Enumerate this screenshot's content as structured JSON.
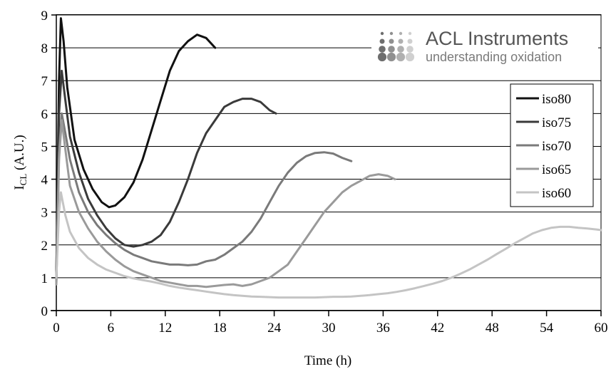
{
  "chart_data": {
    "type": "line",
    "title": "",
    "xlabel": "Time (h)",
    "ylabel": "I",
    "ylabel_sub": "CL",
    "ylabel_suffix": " (A.U.)",
    "xlim": [
      0,
      60
    ],
    "ylim": [
      0,
      9
    ],
    "xticks": [
      "0",
      "6",
      "12",
      "18",
      "24",
      "30",
      "36",
      "42",
      "48",
      "54",
      "60"
    ],
    "yticks": [
      "0",
      "1",
      "2",
      "3",
      "4",
      "5",
      "6",
      "7",
      "8",
      "9"
    ],
    "grid": "horizontal",
    "legend_position": "right",
    "series": [
      {
        "name": "iso80",
        "color": "#111111",
        "points": [
          [
            0,
            0.9
          ],
          [
            0.3,
            7.0
          ],
          [
            0.5,
            8.9
          ],
          [
            0.8,
            8.2
          ],
          [
            1.2,
            6.8
          ],
          [
            2,
            5.2
          ],
          [
            3,
            4.3
          ],
          [
            4,
            3.7
          ],
          [
            5,
            3.3
          ],
          [
            5.8,
            3.15
          ],
          [
            6.5,
            3.2
          ],
          [
            7.5,
            3.45
          ],
          [
            8.5,
            3.9
          ],
          [
            9.5,
            4.6
          ],
          [
            10.5,
            5.5
          ],
          [
            11.5,
            6.4
          ],
          [
            12.5,
            7.3
          ],
          [
            13.5,
            7.9
          ],
          [
            14.5,
            8.2
          ],
          [
            15.5,
            8.4
          ],
          [
            16.5,
            8.3
          ],
          [
            17.5,
            8.0
          ]
        ]
      },
      {
        "name": "iso75",
        "color": "#3a3a3a",
        "points": [
          [
            0,
            1.2
          ],
          [
            0.3,
            6.0
          ],
          [
            0.6,
            7.3
          ],
          [
            1,
            6.4
          ],
          [
            1.5,
            5.3
          ],
          [
            2.5,
            4.2
          ],
          [
            3.5,
            3.4
          ],
          [
            4.5,
            2.9
          ],
          [
            5.5,
            2.5
          ],
          [
            6.5,
            2.2
          ],
          [
            7.5,
            2.0
          ],
          [
            8.5,
            1.95
          ],
          [
            9.5,
            2.0
          ],
          [
            10.5,
            2.1
          ],
          [
            11.5,
            2.3
          ],
          [
            12.5,
            2.7
          ],
          [
            13.5,
            3.3
          ],
          [
            14.5,
            4.0
          ],
          [
            15.5,
            4.8
          ],
          [
            16.5,
            5.4
          ],
          [
            17.5,
            5.8
          ],
          [
            18.5,
            6.2
          ],
          [
            19.5,
            6.35
          ],
          [
            20.5,
            6.45
          ],
          [
            21.5,
            6.45
          ],
          [
            22.5,
            6.35
          ],
          [
            23.5,
            6.1
          ],
          [
            24.2,
            6.0
          ]
        ]
      },
      {
        "name": "iso70",
        "color": "#7a7a7a",
        "points": [
          [
            0,
            0.8
          ],
          [
            0.3,
            4.8
          ],
          [
            0.6,
            6.0
          ],
          [
            1,
            5.4
          ],
          [
            1.5,
            4.6
          ],
          [
            2.5,
            3.6
          ],
          [
            3.5,
            3.0
          ],
          [
            4.5,
            2.6
          ],
          [
            5.5,
            2.3
          ],
          [
            6.5,
            2.05
          ],
          [
            7.5,
            1.85
          ],
          [
            8.5,
            1.7
          ],
          [
            9.5,
            1.6
          ],
          [
            10.5,
            1.5
          ],
          [
            11.5,
            1.45
          ],
          [
            12.5,
            1.4
          ],
          [
            13.5,
            1.4
          ],
          [
            14.5,
            1.38
          ],
          [
            15.5,
            1.4
          ],
          [
            16.5,
            1.5
          ],
          [
            17.5,
            1.55
          ],
          [
            18.5,
            1.7
          ],
          [
            19.5,
            1.9
          ],
          [
            20.5,
            2.1
          ],
          [
            21.5,
            2.4
          ],
          [
            22.5,
            2.8
          ],
          [
            23.5,
            3.3
          ],
          [
            24.5,
            3.8
          ],
          [
            25.5,
            4.2
          ],
          [
            26.5,
            4.5
          ],
          [
            27.5,
            4.7
          ],
          [
            28.5,
            4.8
          ],
          [
            29.5,
            4.82
          ],
          [
            30.5,
            4.78
          ],
          [
            31.5,
            4.65
          ],
          [
            32.5,
            4.55
          ]
        ]
      },
      {
        "name": "iso65",
        "color": "#9a9a9a",
        "points": [
          [
            0,
            0.8
          ],
          [
            0.3,
            4.6
          ],
          [
            0.6,
            5.8
          ],
          [
            1,
            4.9
          ],
          [
            1.5,
            3.8
          ],
          [
            2.5,
            3.0
          ],
          [
            3.5,
            2.5
          ],
          [
            4.5,
            2.1
          ],
          [
            5.5,
            1.8
          ],
          [
            6.5,
            1.55
          ],
          [
            7.5,
            1.35
          ],
          [
            8.5,
            1.2
          ],
          [
            9.5,
            1.1
          ],
          [
            10.5,
            1.0
          ],
          [
            11.5,
            0.9
          ],
          [
            12.5,
            0.85
          ],
          [
            13.5,
            0.8
          ],
          [
            14.5,
            0.75
          ],
          [
            15.5,
            0.75
          ],
          [
            16.5,
            0.72
          ],
          [
            17.5,
            0.75
          ],
          [
            18.5,
            0.78
          ],
          [
            19.5,
            0.8
          ],
          [
            20.5,
            0.75
          ],
          [
            21.5,
            0.8
          ],
          [
            22.5,
            0.9
          ],
          [
            23.5,
            1.0
          ],
          [
            24.5,
            1.2
          ],
          [
            25.5,
            1.4
          ],
          [
            26.5,
            1.8
          ],
          [
            27.5,
            2.2
          ],
          [
            28.5,
            2.6
          ],
          [
            29.5,
            3.0
          ],
          [
            30.5,
            3.3
          ],
          [
            31.5,
            3.6
          ],
          [
            32.5,
            3.8
          ],
          [
            33.5,
            3.95
          ],
          [
            34.5,
            4.1
          ],
          [
            35.5,
            4.15
          ],
          [
            36.5,
            4.1
          ],
          [
            37.3,
            4.0
          ]
        ]
      },
      {
        "name": "iso60",
        "color": "#c4c4c4",
        "points": [
          [
            0,
            1.0
          ],
          [
            0.3,
            3.0
          ],
          [
            0.5,
            3.6
          ],
          [
            1,
            2.9
          ],
          [
            1.5,
            2.4
          ],
          [
            2.5,
            1.9
          ],
          [
            3.5,
            1.6
          ],
          [
            4.5,
            1.4
          ],
          [
            5.5,
            1.25
          ],
          [
            6.5,
            1.15
          ],
          [
            7.5,
            1.05
          ],
          [
            8.5,
            0.98
          ],
          [
            9.5,
            0.93
          ],
          [
            10.5,
            0.88
          ],
          [
            11.5,
            0.82
          ],
          [
            12.5,
            0.75
          ],
          [
            13.5,
            0.7
          ],
          [
            14.5,
            0.66
          ],
          [
            15.5,
            0.62
          ],
          [
            16.5,
            0.58
          ],
          [
            17.5,
            0.54
          ],
          [
            18.5,
            0.5
          ],
          [
            19.5,
            0.47
          ],
          [
            20.5,
            0.45
          ],
          [
            21.5,
            0.43
          ],
          [
            22.5,
            0.42
          ],
          [
            23.5,
            0.41
          ],
          [
            24.5,
            0.4
          ],
          [
            25.5,
            0.4
          ],
          [
            26.5,
            0.4
          ],
          [
            27.5,
            0.4
          ],
          [
            28.5,
            0.4
          ],
          [
            29.5,
            0.41
          ],
          [
            30.5,
            0.42
          ],
          [
            31.5,
            0.42
          ],
          [
            32.5,
            0.43
          ],
          [
            33.5,
            0.45
          ],
          [
            34.5,
            0.47
          ],
          [
            35.5,
            0.5
          ],
          [
            36.5,
            0.53
          ],
          [
            37.5,
            0.57
          ],
          [
            38.5,
            0.62
          ],
          [
            39.5,
            0.68
          ],
          [
            40.5,
            0.75
          ],
          [
            41.5,
            0.82
          ],
          [
            42.5,
            0.9
          ],
          [
            43.5,
            1.0
          ],
          [
            44.5,
            1.12
          ],
          [
            45.5,
            1.25
          ],
          [
            46.5,
            1.4
          ],
          [
            47.5,
            1.55
          ],
          [
            48.5,
            1.72
          ],
          [
            49.5,
            1.88
          ],
          [
            50.5,
            2.05
          ],
          [
            51.5,
            2.2
          ],
          [
            52.5,
            2.35
          ],
          [
            53.5,
            2.45
          ],
          [
            54.5,
            2.52
          ],
          [
            55.5,
            2.55
          ],
          [
            56.5,
            2.55
          ],
          [
            57.5,
            2.52
          ],
          [
            58.5,
            2.5
          ],
          [
            59.5,
            2.47
          ],
          [
            60,
            2.45
          ]
        ]
      }
    ]
  },
  "logo": {
    "name": "ACL Instruments",
    "tagline": "understanding oxidation",
    "dot_colors": [
      "#d0d0d0",
      "#b0b0b0",
      "#909090",
      "#6e6e6e"
    ]
  }
}
